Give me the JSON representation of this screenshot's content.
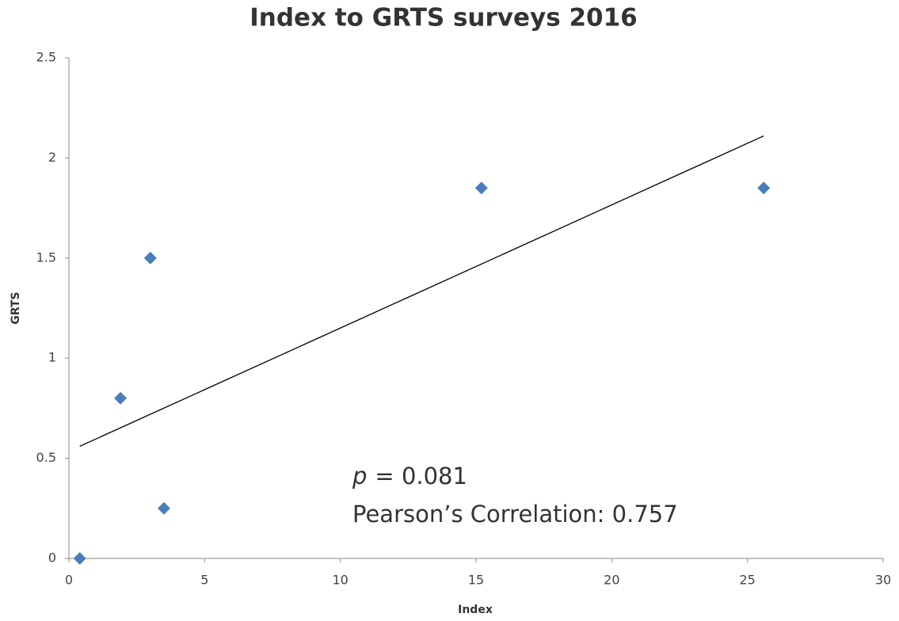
{
  "chart_data": {
    "type": "scatter",
    "title": "Index to GRTS surveys 2016",
    "x_label": "Index",
    "y_label": "GRTS",
    "series": [
      {
        "name": "GRTS",
        "color": "#4a7ebb",
        "x": [
          0.4,
          1.9,
          3.0,
          3.5,
          15.2,
          25.6
        ],
        "values": [
          0,
          0.8,
          1.5,
          0.25,
          1.85,
          1.85
        ]
      }
    ],
    "trendline": {
      "color": "#000000",
      "x": [
        0.4,
        25.6
      ],
      "values": [
        0.56,
        2.11
      ]
    },
    "annotations": [
      {
        "italic": "p",
        "text": "= 0.081"
      },
      {
        "text": "Pearson’s Correlation: 0.757"
      }
    ],
    "xlim": [
      0,
      30
    ],
    "xticks": [
      0,
      5,
      10,
      15,
      20,
      25,
      30
    ],
    "ylim": [
      0,
      2.5
    ],
    "yticks": [
      0,
      0.5,
      1,
      1.5,
      2,
      2.5
    ],
    "grid": false
  }
}
